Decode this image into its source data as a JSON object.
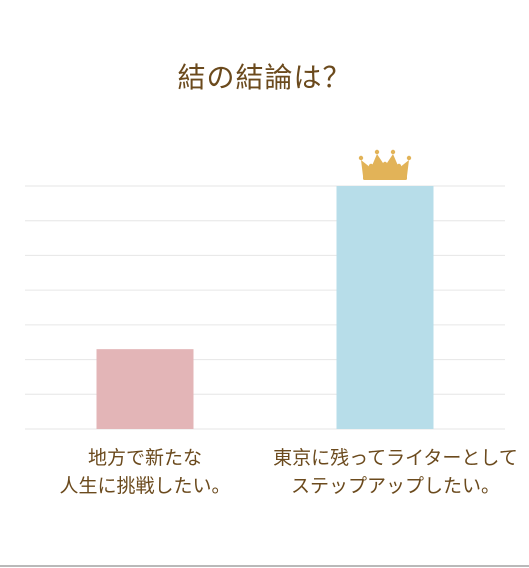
{
  "chart_data": {
    "type": "bar",
    "title": "結の結論は？",
    "categories": [
      [
        "地方で新たな",
        "人生に挑戦したい。"
      ],
      [
        "東京に残ってライターとして",
        "ステップアップしたい。"
      ]
    ],
    "values": [
      23,
      70
    ],
    "ylim": [
      0,
      70
    ],
    "grid": true,
    "xlabel": "",
    "ylabel": "",
    "colors": {
      "bar_1": "#e3b5b7",
      "bar_2": "#b7dde9",
      "grid": "#e6e6e6",
      "text": "#6b4a1d",
      "crown": "#e2b358"
    },
    "winner_icon": "crown-icon"
  }
}
